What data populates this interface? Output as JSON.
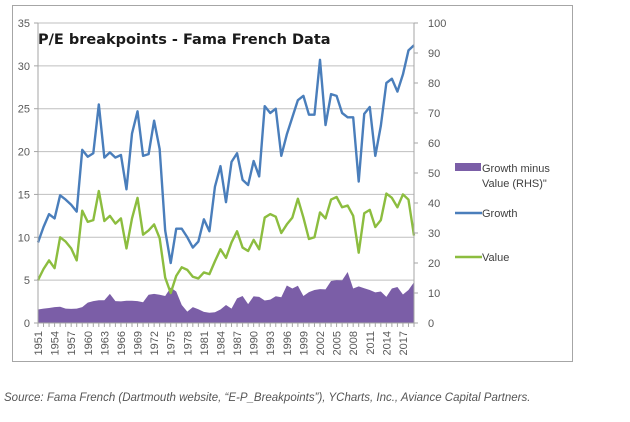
{
  "caption": "Source: Fama French (Dartmouth website, “E-P_Breakpoints”), YCharts, Inc., Aviance Capital Partners.",
  "chart_data": {
    "type": "line",
    "title": "P/E breakpoints - Fama French Data",
    "xlabel": "",
    "ylabel": "",
    "ylim": [
      0,
      35
    ],
    "y2lim": [
      0,
      100
    ],
    "yticks": [
      0,
      5,
      10,
      15,
      20,
      25,
      30,
      35
    ],
    "y2ticks": [
      0,
      10,
      20,
      30,
      40,
      50,
      60,
      70,
      80,
      90,
      100
    ],
    "grid": true,
    "legend_position": "right",
    "x": [
      1951,
      1952,
      1953,
      1954,
      1955,
      1956,
      1957,
      1958,
      1959,
      1960,
      1961,
      1962,
      1963,
      1964,
      1965,
      1966,
      1967,
      1968,
      1969,
      1970,
      1971,
      1972,
      1973,
      1974,
      1975,
      1976,
      1977,
      1978,
      1979,
      1980,
      1981,
      1982,
      1983,
      1984,
      1985,
      1986,
      1987,
      1988,
      1989,
      1990,
      1991,
      1992,
      1993,
      1994,
      1995,
      1996,
      1997,
      1998,
      1999,
      2000,
      2001,
      2002,
      2003,
      2004,
      2005,
      2006,
      2007,
      2008,
      2009,
      2010,
      2011,
      2012,
      2013,
      2014,
      2015,
      2016,
      2017,
      2018,
      2019
    ],
    "xtick_labels": [
      "1951",
      "1954",
      "1957",
      "1960",
      "1963",
      "1966",
      "1969",
      "1972",
      "1975",
      "1978",
      "1981",
      "1984",
      "1987",
      "1990",
      "1993",
      "1996",
      "1999",
      "2002",
      "2005",
      "2008",
      "2011",
      "2014",
      "2017"
    ],
    "series": [
      {
        "name": "Growth minus Value (RHS)\"",
        "type": "area",
        "axis": "right",
        "color": "#7b5ea7",
        "values": [
          4.5,
          4.8,
          5.0,
          5.3,
          5.4,
          4.8,
          4.7,
          4.8,
          5.3,
          6.8,
          7.3,
          7.6,
          7.6,
          9.7,
          7.3,
          7.2,
          7.4,
          7.4,
          7.3,
          6.9,
          9.4,
          9.7,
          9.4,
          9.0,
          11.8,
          10.5,
          6.0,
          3.8,
          5.3,
          4.6,
          3.7,
          3.4,
          3.6,
          4.5,
          6.0,
          4.8,
          8.2,
          9.0,
          6.3,
          8.9,
          8.7,
          7.5,
          7.8,
          8.9,
          8.6,
          12.5,
          11.5,
          12.4,
          9.0,
          10.3,
          11.0,
          11.3,
          11.2,
          14.0,
          14.3,
          14.2,
          17.0,
          11.5,
          12.2,
          11.6,
          11.0,
          10.2,
          10.5,
          8.7,
          11.5,
          12.0,
          9.5,
          11.0,
          13.6
        ]
      },
      {
        "name": "Growth",
        "type": "line",
        "axis": "left",
        "color": "#4a7ebb",
        "values": [
          9.4,
          11.2,
          12.7,
          12.2,
          14.9,
          14.4,
          13.8,
          13.0,
          20.2,
          19.4,
          19.8,
          25.5,
          19.3,
          19.9,
          19.3,
          19.6,
          15.6,
          22.1,
          24.7,
          19.5,
          19.7,
          23.6,
          20.3,
          10.8,
          7.0,
          11.0,
          11.0,
          10.0,
          8.8,
          9.5,
          12.1,
          10.7,
          15.9,
          18.3,
          14.1,
          18.8,
          19.8,
          16.7,
          16.1,
          18.9,
          17.1,
          25.3,
          24.5,
          25.0,
          19.5,
          22.0,
          24.0,
          26.0,
          26.5,
          24.3,
          24.3,
          30.7,
          23.1,
          26.7,
          26.5,
          24.5,
          24.0,
          24.0,
          16.5,
          24.4,
          25.2,
          19.5,
          23.0,
          28.0,
          28.5,
          27.0,
          29.0,
          31.8,
          32.4
        ]
      },
      {
        "name": "Value",
        "type": "line",
        "axis": "left",
        "color": "#8cbd3f",
        "values": [
          5.0,
          6.3,
          7.3,
          6.4,
          10.0,
          9.5,
          8.7,
          7.3,
          13.1,
          11.8,
          12.0,
          15.4,
          11.9,
          12.5,
          11.6,
          12.2,
          8.7,
          12.2,
          14.6,
          10.3,
          10.8,
          11.5,
          9.9,
          5.3,
          3.5,
          5.5,
          6.5,
          6.2,
          5.4,
          5.2,
          5.9,
          5.7,
          7.2,
          8.6,
          7.6,
          9.4,
          10.7,
          8.8,
          8.4,
          9.7,
          8.6,
          12.3,
          12.7,
          12.4,
          10.5,
          11.5,
          12.3,
          14.5,
          12.3,
          9.8,
          10.0,
          12.9,
          12.2,
          14.4,
          14.7,
          13.5,
          13.7,
          12.5,
          8.2,
          12.8,
          13.2,
          11.2,
          12.0,
          15.1,
          14.6,
          13.5,
          15.0,
          14.4,
          10.2
        ]
      }
    ]
  }
}
